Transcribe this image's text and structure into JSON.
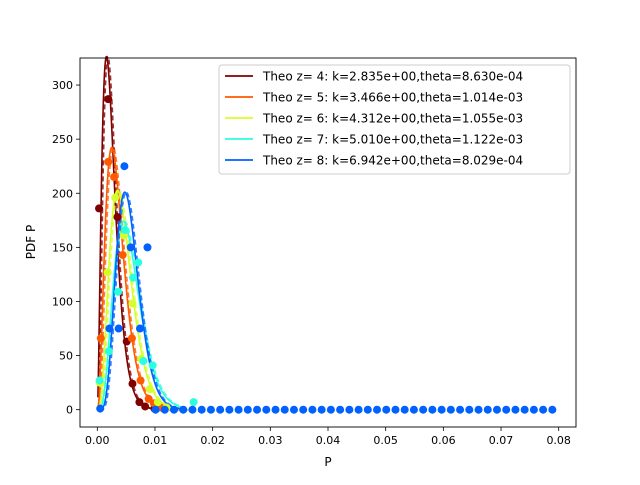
{
  "chart_data": {
    "type": "line",
    "title": "",
    "xlabel": "P",
    "ylabel": "PDF P",
    "xlim": [
      -0.003,
      0.083
    ],
    "ylim": [
      -16,
      325
    ],
    "xticks": [
      0.0,
      0.01,
      0.02,
      0.03,
      0.04,
      0.05,
      0.06,
      0.07,
      0.08
    ],
    "xtick_labels": [
      "0.00",
      "0.01",
      "0.02",
      "0.03",
      "0.04",
      "0.05",
      "0.06",
      "0.07",
      "0.08"
    ],
    "yticks": [
      0,
      50,
      100,
      150,
      200,
      250,
      300
    ],
    "ytick_labels": [
      "0",
      "50",
      "100",
      "150",
      "200",
      "250",
      "300"
    ],
    "grid": false,
    "legend_position": "upper-right",
    "scatter_x": [
      0.0005,
      0.0021,
      0.0037,
      0.0053,
      0.0069,
      0.0085,
      0.0101,
      0.0117,
      0.0133,
      0.0149,
      0.0165,
      0.0181,
      0.0197,
      0.0213,
      0.0229,
      0.0245,
      0.0261,
      0.0277,
      0.0293,
      0.0309,
      0.0325,
      0.0341,
      0.0357,
      0.0373,
      0.0389,
      0.0405,
      0.0421,
      0.0437,
      0.0453,
      0.0469,
      0.0485,
      0.0501,
      0.0517,
      0.0533,
      0.0549,
      0.0565,
      0.0581,
      0.0597,
      0.0613,
      0.0629,
      0.0645,
      0.0661,
      0.0677,
      0.0693,
      0.0709,
      0.0725,
      0.0741,
      0.0757,
      0.0773,
      0.0789
    ],
    "series": [
      {
        "name": "Theo z= 4: k=2.835e+00,theta=8.630e-04",
        "color": "#800000",
        "k": 2.835,
        "theta": 0.000863,
        "points": [
          [
            0.0003,
            186
          ],
          [
            0.0019,
            287
          ],
          [
            0.0035,
            178
          ],
          [
            0.0051,
            63
          ],
          [
            0.0061,
            24
          ],
          [
            0.0073,
            7
          ],
          [
            0.0083,
            3
          ],
          [
            0.0099,
            1
          ]
        ]
      },
      {
        "name": "Theo z= 5: k=3.466e+00,theta=1.014e-03",
        "color": "#ff5a00",
        "k": 3.466,
        "theta": 0.001014,
        "points": [
          [
            0.0006,
            66
          ],
          [
            0.0019,
            229
          ],
          [
            0.0029,
            215
          ],
          [
            0.0044,
            143
          ],
          [
            0.006,
            66
          ],
          [
            0.0075,
            27
          ],
          [
            0.0089,
            10
          ],
          [
            0.0098,
            6
          ],
          [
            0.011,
            2
          ]
        ]
      },
      {
        "name": "Theo z= 6: k=4.312e+00,theta=1.055e-03",
        "color": "#d4ff2a",
        "k": 4.312,
        "theta": 0.001055,
        "points": [
          [
            0.0004,
            25
          ],
          [
            0.0018,
            127
          ],
          [
            0.0031,
            196
          ],
          [
            0.0046,
            161
          ],
          [
            0.0061,
            98
          ],
          [
            0.0076,
            47
          ],
          [
            0.0091,
            19
          ],
          [
            0.0105,
            7
          ],
          [
            0.012,
            2
          ]
        ]
      },
      {
        "name": "Theo z= 7: k=5.010e+00,theta=1.122e-03",
        "color": "#2affe0",
        "k": 5.01,
        "theta": 0.001122,
        "points": [
          [
            0.0004,
            27
          ],
          [
            0.002,
            54
          ],
          [
            0.0036,
            109
          ],
          [
            0.0048,
            166
          ],
          [
            0.0062,
            122
          ],
          [
            0.0071,
            136
          ],
          [
            0.008,
            45
          ],
          [
            0.0096,
            41
          ],
          [
            0.0167,
            7
          ]
        ]
      },
      {
        "name": "Theo z= 8: k=6.942e+00,theta=8.029e-04",
        "color": "#0061ff",
        "k": 6.942,
        "theta": 0.000803,
        "points": [
          [
            0.0005,
            1
          ],
          [
            0.0021,
            75
          ],
          [
            0.0037,
            75
          ],
          [
            0.0047,
            225
          ],
          [
            0.0058,
            150
          ],
          [
            0.0074,
            75
          ],
          [
            0.0087,
            150
          ]
        ]
      }
    ]
  }
}
